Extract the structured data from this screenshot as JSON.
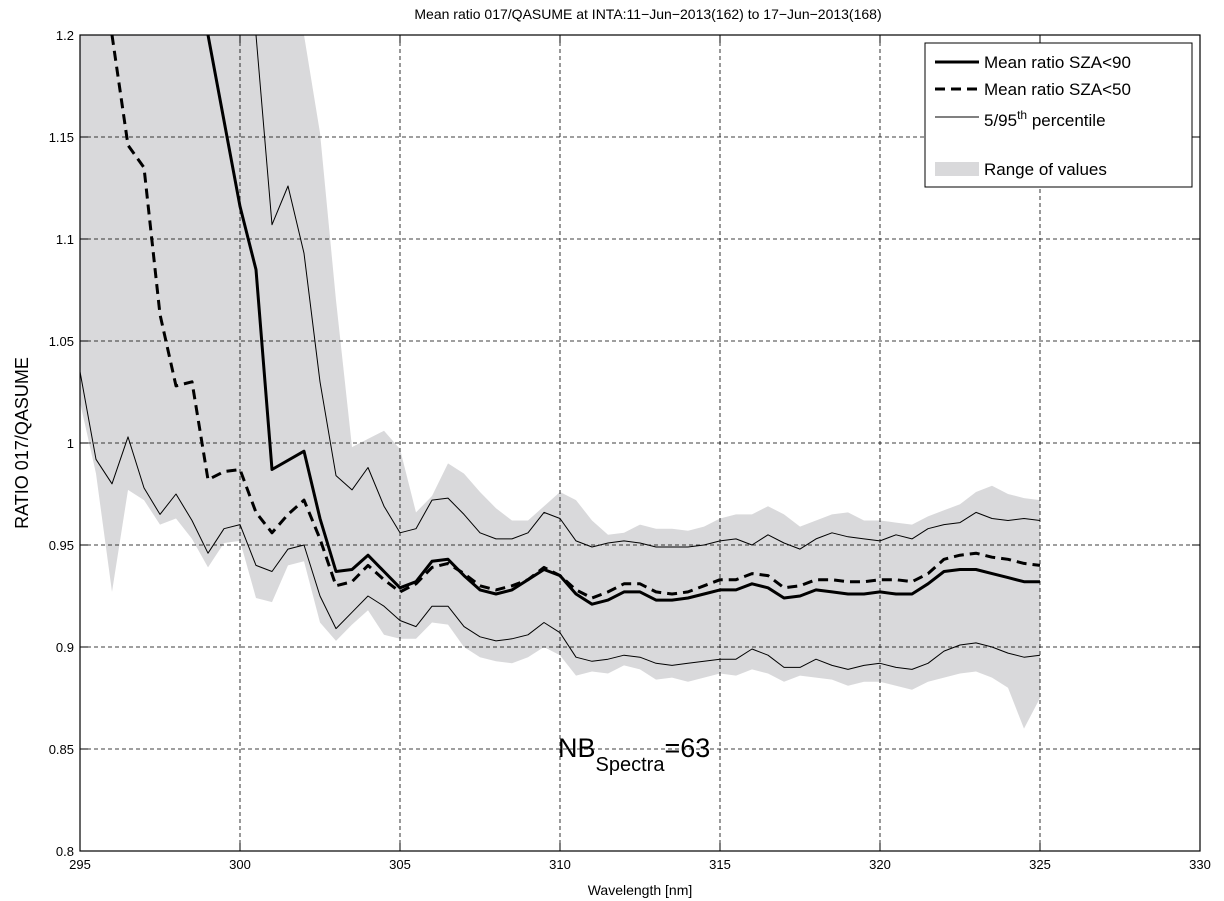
{
  "chart_data": {
    "type": "line",
    "title": "Mean ratio 017/QASUME at INTA:11−Jun−2013(162) to 17−Jun−2013(168)",
    "xlabel": "Wavelength [nm]",
    "ylabel": "RATIO 017/QASUME",
    "xlim": [
      295,
      330
    ],
    "ylim": [
      0.8,
      1.2
    ],
    "xticks": [
      295,
      300,
      305,
      310,
      315,
      320,
      325,
      330
    ],
    "yticks": [
      0.8,
      0.85,
      0.9,
      0.95,
      1.0,
      1.05,
      1.1,
      1.15,
      1.2
    ],
    "xtick_labels": [
      "295",
      "300",
      "305",
      "310",
      "315",
      "320",
      "325",
      "330"
    ],
    "ytick_labels": [
      "0.8",
      "0.85",
      "0.9",
      "0.95",
      "1",
      "1.05",
      "1.1",
      "1.15",
      "1.2"
    ],
    "grid": true,
    "legend_position": "top-right",
    "legend": {
      "mean90": "Mean ratio SZA<90",
      "mean50": "Mean ratio SZA<50",
      "pct_base": "5/95",
      "pct_sup": "th",
      "pct_rest": " percentile",
      "range": "Range of values"
    },
    "annotation": {
      "main": "NB",
      "sub": "Spectra",
      "tail": "=63"
    },
    "colors": {
      "line": "#000000",
      "range_fill": "#d9d9db",
      "grid": "#000000"
    },
    "series": [
      {
        "name": "Mean ratio SZA<90",
        "style": "solid-thick",
        "x": [
          299,
          299.5,
          300,
          300.5,
          301,
          302,
          302.5,
          303,
          303.5,
          304,
          304.5,
          305,
          305.5,
          306,
          306.5,
          307,
          307.5,
          308,
          308.5,
          309,
          309.5,
          310,
          310.5,
          311,
          311.5,
          312,
          312.5,
          313,
          313.5,
          314,
          314.5,
          315,
          315.5,
          316,
          316.5,
          317,
          317.5,
          318,
          318.5,
          319,
          319.5,
          320,
          320.5,
          321,
          321.5,
          322,
          322.5,
          323,
          323.5,
          324,
          324.5,
          325
        ],
        "y": [
          1.2,
          1.158,
          1.116,
          1.085,
          0.987,
          0.996,
          0.963,
          0.937,
          0.938,
          0.945,
          0.937,
          0.929,
          0.932,
          0.942,
          0.943,
          0.935,
          0.928,
          0.926,
          0.928,
          0.933,
          0.938,
          0.935,
          0.926,
          0.921,
          0.923,
          0.927,
          0.927,
          0.923,
          0.923,
          0.924,
          0.926,
          0.928,
          0.928,
          0.931,
          0.929,
          0.924,
          0.925,
          0.928,
          0.927,
          0.926,
          0.926,
          0.927,
          0.926,
          0.926,
          0.931,
          0.937,
          0.938,
          0.938,
          0.936,
          0.934,
          0.932,
          0.932
        ]
      },
      {
        "name": "Mean ratio SZA<50",
        "style": "dashed-thick",
        "x": [
          296,
          296.5,
          297,
          297.5,
          298,
          298.5,
          299,
          299.5,
          300,
          300.5,
          301,
          301.5,
          302,
          302.5,
          303,
          303.5,
          304,
          304.5,
          305,
          305.5,
          306,
          306.5,
          307,
          307.5,
          308,
          308.5,
          309,
          309.5,
          310,
          310.5,
          311,
          311.5,
          312,
          312.5,
          313,
          313.5,
          314,
          314.5,
          315,
          315.5,
          316,
          316.5,
          317,
          317.5,
          318,
          318.5,
          319,
          319.5,
          320,
          320.5,
          321,
          321.5,
          322,
          322.5,
          323,
          323.5,
          324,
          324.5,
          325
        ],
        "y": [
          1.2,
          1.146,
          1.135,
          1.063,
          1.028,
          1.03,
          0.982,
          0.986,
          0.987,
          0.966,
          0.956,
          0.965,
          0.972,
          0.953,
          0.93,
          0.932,
          0.94,
          0.933,
          0.927,
          0.931,
          0.939,
          0.941,
          0.936,
          0.93,
          0.928,
          0.93,
          0.933,
          0.939,
          0.935,
          0.928,
          0.924,
          0.927,
          0.931,
          0.931,
          0.927,
          0.926,
          0.927,
          0.93,
          0.933,
          0.933,
          0.936,
          0.935,
          0.929,
          0.93,
          0.933,
          0.933,
          0.932,
          0.932,
          0.933,
          0.933,
          0.932,
          0.936,
          0.943,
          0.945,
          0.946,
          0.944,
          0.943,
          0.941,
          0.94
        ]
      },
      {
        "name": "5th percentile",
        "style": "thin",
        "x": [
          295,
          295.5,
          296,
          296.5,
          297,
          297.5,
          298,
          298.5,
          299,
          299.5,
          300,
          300.5,
          301,
          301.5,
          302,
          302.5,
          303,
          303.5,
          304,
          304.5,
          305,
          305.5,
          306,
          306.5,
          307,
          307.5,
          308,
          308.5,
          309,
          309.5,
          310,
          310.5,
          311,
          311.5,
          312,
          312.5,
          313,
          313.5,
          314,
          314.5,
          315,
          315.5,
          316,
          316.5,
          317,
          317.5,
          318,
          318.5,
          319,
          319.5,
          320,
          320.5,
          321,
          321.5,
          322,
          322.5,
          323,
          323.5,
          324,
          324.5,
          325
        ],
        "y": [
          1.035,
          0.992,
          0.98,
          1.003,
          0.978,
          0.965,
          0.975,
          0.962,
          0.946,
          0.958,
          0.96,
          0.94,
          0.937,
          0.948,
          0.95,
          0.925,
          0.909,
          0.917,
          0.925,
          0.92,
          0.913,
          0.91,
          0.92,
          0.92,
          0.91,
          0.905,
          0.903,
          0.904,
          0.906,
          0.912,
          0.907,
          0.895,
          0.893,
          0.894,
          0.896,
          0.895,
          0.892,
          0.891,
          0.892,
          0.893,
          0.894,
          0.894,
          0.899,
          0.896,
          0.89,
          0.89,
          0.894,
          0.891,
          0.889,
          0.891,
          0.892,
          0.89,
          0.889,
          0.892,
          0.898,
          0.901,
          0.902,
          0.9,
          0.897,
          0.895,
          0.896
        ]
      },
      {
        "name": "95th percentile",
        "style": "thin",
        "x": [
          299.5,
          300,
          300.5,
          301,
          301.5,
          302,
          302.5,
          303,
          303.5,
          304,
          304.5,
          305,
          305.5,
          306,
          306.5,
          307,
          307.5,
          308,
          308.5,
          309,
          309.5,
          310,
          310.5,
          311,
          311.5,
          312,
          312.5,
          313,
          313.5,
          314,
          314.5,
          315,
          315.5,
          316,
          316.5,
          317,
          317.5,
          318,
          318.5,
          319,
          319.5,
          320,
          320.5,
          321,
          321.5,
          322,
          322.5,
          323,
          323.5,
          324,
          324.5,
          325
        ],
        "y": [
          1.2,
          1.2,
          1.2,
          1.107,
          1.126,
          1.093,
          1.03,
          0.984,
          0.977,
          0.988,
          0.969,
          0.956,
          0.958,
          0.972,
          0.973,
          0.965,
          0.956,
          0.953,
          0.953,
          0.956,
          0.966,
          0.963,
          0.952,
          0.949,
          0.951,
          0.952,
          0.951,
          0.949,
          0.949,
          0.949,
          0.95,
          0.952,
          0.953,
          0.95,
          0.955,
          0.951,
          0.948,
          0.953,
          0.956,
          0.954,
          0.953,
          0.952,
          0.955,
          0.953,
          0.958,
          0.96,
          0.961,
          0.966,
          0.963,
          0.962,
          0.963,
          0.962
        ]
      }
    ],
    "range": {
      "name": "Range of values",
      "x": [
        295,
        295.5,
        296,
        296.5,
        297,
        297.5,
        298,
        298.5,
        299,
        299.5,
        300,
        300.5,
        301,
        301.5,
        302,
        302.5,
        303,
        303.5,
        304,
        304.5,
        305,
        305.5,
        306,
        306.5,
        307,
        307.5,
        308,
        308.5,
        309,
        309.5,
        310,
        310.5,
        311,
        311.5,
        312,
        312.5,
        313,
        313.5,
        314,
        314.5,
        315,
        315.5,
        316,
        316.5,
        317,
        317.5,
        318,
        318.5,
        319,
        319.5,
        320,
        320.5,
        321,
        321.5,
        322,
        322.5,
        323,
        323.5,
        324,
        324.5,
        325
      ],
      "lower": [
        1.02,
        0.985,
        0.927,
        0.977,
        0.972,
        0.96,
        0.963,
        0.953,
        0.939,
        0.951,
        0.952,
        0.924,
        0.922,
        0.94,
        0.942,
        0.912,
        0.903,
        0.911,
        0.918,
        0.906,
        0.904,
        0.904,
        0.912,
        0.911,
        0.9,
        0.895,
        0.893,
        0.892,
        0.895,
        0.9,
        0.896,
        0.886,
        0.888,
        0.887,
        0.891,
        0.889,
        0.884,
        0.885,
        0.883,
        0.885,
        0.887,
        0.886,
        0.889,
        0.887,
        0.883,
        0.886,
        0.885,
        0.884,
        0.881,
        0.883,
        0.883,
        0.881,
        0.879,
        0.883,
        0.885,
        0.887,
        0.888,
        0.885,
        0.88,
        0.86,
        0.875
      ],
      "upper": [
        1.2,
        1.2,
        1.2,
        1.2,
        1.2,
        1.2,
        1.2,
        1.2,
        1.2,
        1.2,
        1.2,
        1.2,
        1.2,
        1.2,
        1.2,
        1.152,
        1.07,
        0.998,
        1.002,
        1.006,
        0.997,
        0.966,
        0.974,
        0.99,
        0.985,
        0.976,
        0.968,
        0.962,
        0.962,
        0.969,
        0.976,
        0.972,
        0.962,
        0.955,
        0.956,
        0.96,
        0.958,
        0.958,
        0.957,
        0.959,
        0.963,
        0.965,
        0.965,
        0.969,
        0.965,
        0.959,
        0.962,
        0.965,
        0.966,
        0.962,
        0.962,
        0.961,
        0.96,
        0.964,
        0.967,
        0.97,
        0.976,
        0.979,
        0.975,
        0.973,
        0.972
      ]
    }
  }
}
